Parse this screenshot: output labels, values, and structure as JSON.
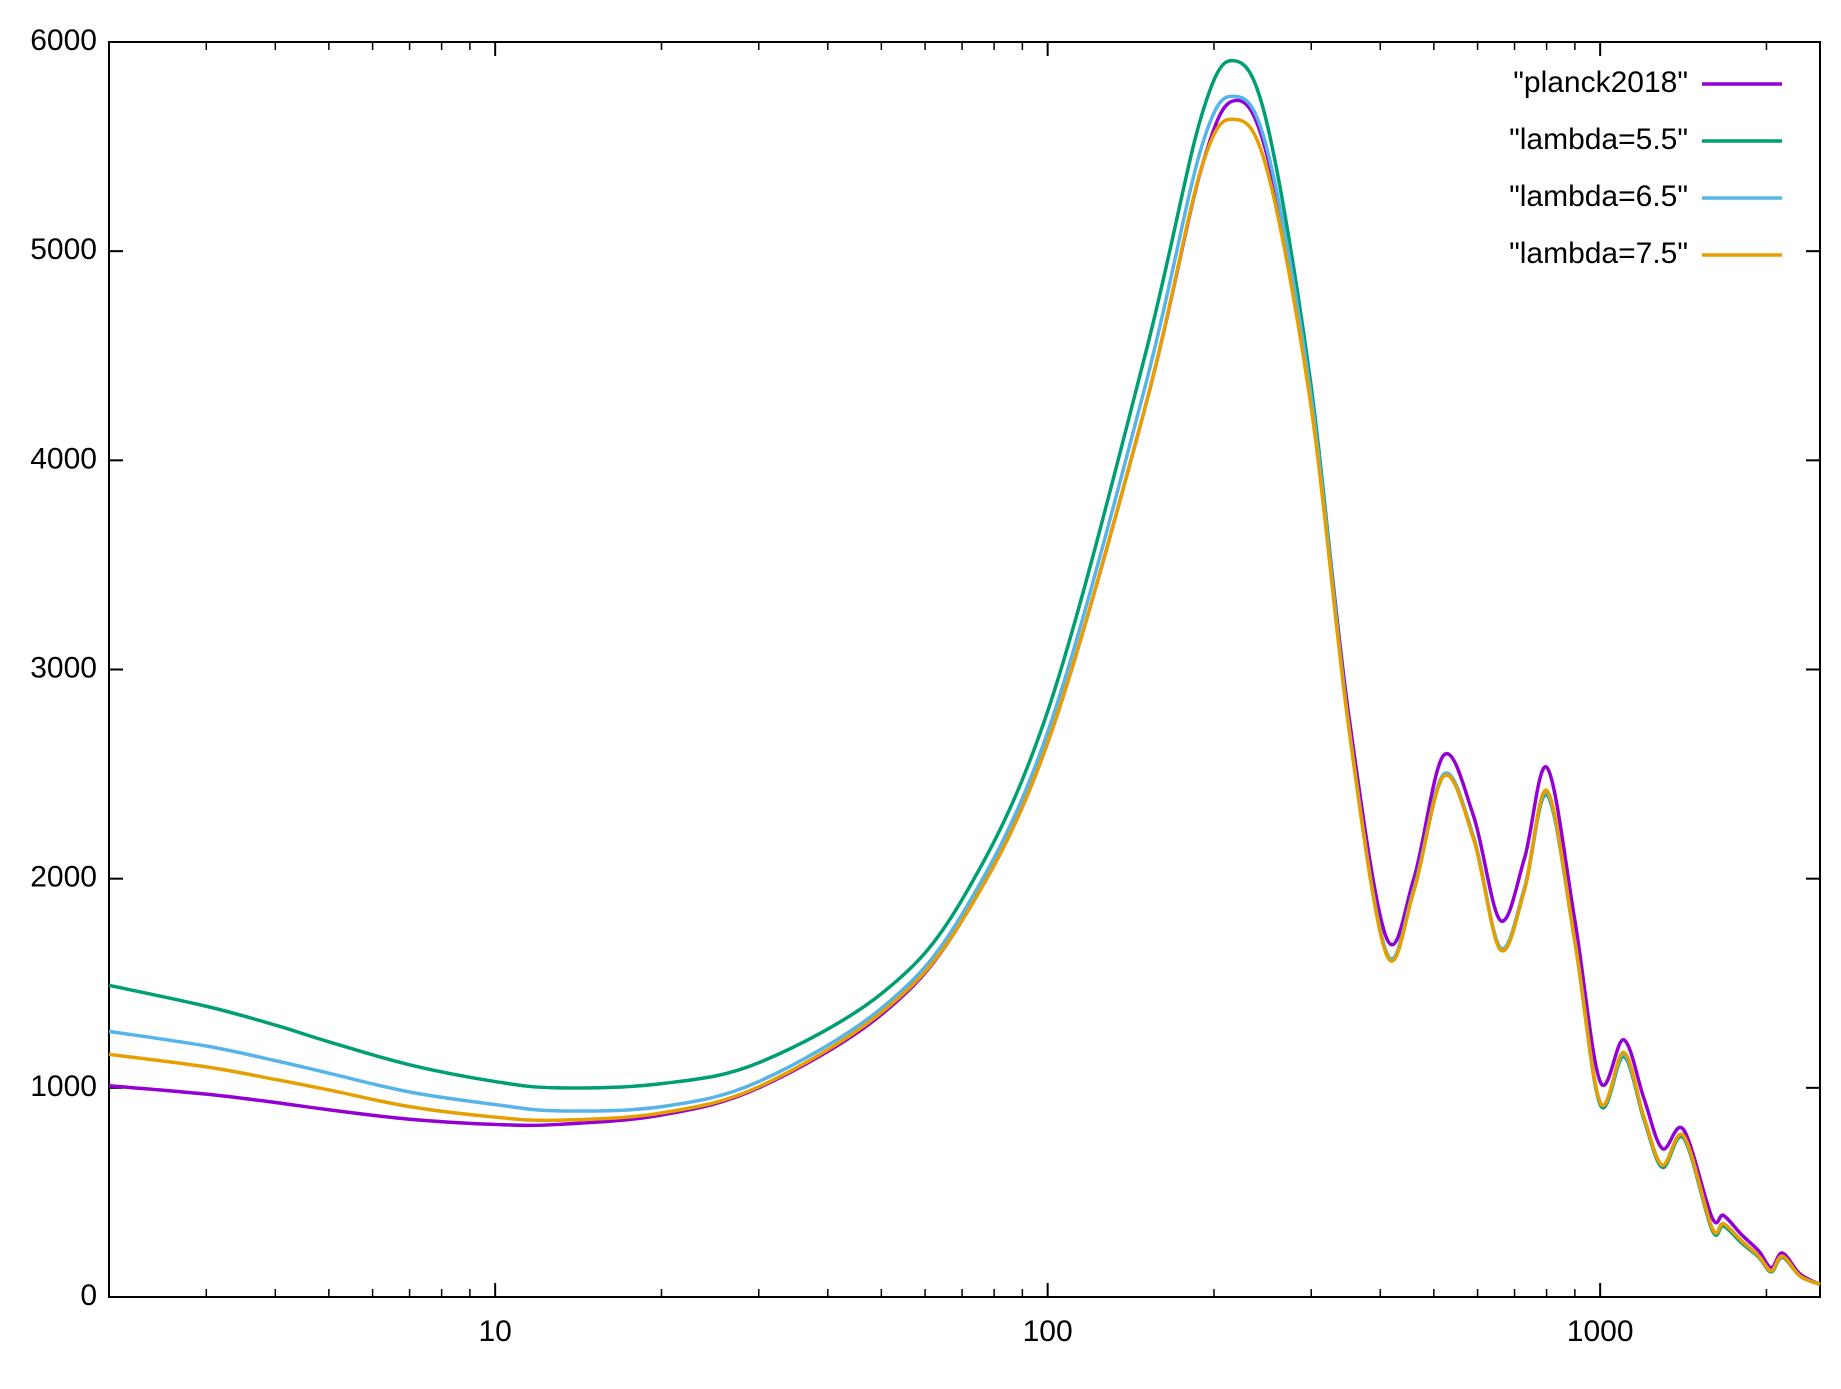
{
  "chart_data": {
    "type": "line",
    "x": [
      2,
      3,
      4,
      5,
      7,
      10,
      13,
      20,
      30,
      50,
      70,
      100,
      150,
      190,
      218,
      250,
      300,
      350,
      410,
      460,
      521,
      590,
      660,
      730,
      802,
      900,
      1000,
      1103,
      1200,
      1296,
      1416,
      1594,
      1672,
      1800,
      1937,
      2040,
      2137,
      2300,
      2500
    ],
    "series": [
      {
        "name": "\"planck2018\"",
        "color": "#9400d3",
        "values": [
          1010,
          970,
          930,
          895,
          850,
          825,
          825,
          870,
          1000,
          1350,
          1800,
          2650,
          4250,
          5400,
          5720,
          5450,
          4300,
          2800,
          1720,
          2000,
          2590,
          2300,
          1800,
          2100,
          2530,
          1800,
          1030,
          1230,
          950,
          710,
          800,
          380,
          390,
          300,
          220,
          140,
          210,
          110,
          60
        ]
      },
      {
        "name": "\"lambda=5.5\"",
        "color": "#009e73",
        "values": [
          1490,
          1390,
          1300,
          1220,
          1110,
          1030,
          1000,
          1020,
          1120,
          1450,
          1900,
          2800,
          4500,
          5650,
          5910,
          5600,
          4350,
          2750,
          1650,
          1950,
          2490,
          2200,
          1660,
          1950,
          2400,
          1700,
          920,
          1150,
          850,
          620,
          760,
          320,
          340,
          260,
          190,
          120,
          190,
          100,
          60
        ]
      },
      {
        "name": "\"lambda=6.5\"",
        "color": "#56b4e9",
        "values": [
          1270,
          1200,
          1130,
          1070,
          980,
          920,
          890,
          910,
          1030,
          1380,
          1830,
          2700,
          4350,
          5500,
          5740,
          5480,
          4300,
          2750,
          1650,
          1950,
          2500,
          2200,
          1670,
          1960,
          2410,
          1700,
          930,
          1160,
          860,
          630,
          770,
          330,
          350,
          270,
          195,
          125,
          195,
          100,
          60
        ]
      },
      {
        "name": "\"lambda=7.5\"",
        "color": "#e69f00",
        "values": [
          1160,
          1100,
          1040,
          990,
          910,
          860,
          845,
          880,
          1005,
          1360,
          1800,
          2650,
          4250,
          5400,
          5630,
          5380,
          4250,
          2740,
          1640,
          1940,
          2490,
          2190,
          1660,
          1950,
          2420,
          1700,
          930,
          1170,
          860,
          630,
          770,
          330,
          350,
          270,
          195,
          125,
          195,
          100,
          60
        ]
      }
    ],
    "xlim": [
      2,
      2500
    ],
    "xticks": [
      10,
      100,
      1000
    ],
    "xlog": true,
    "minor_ticks": true,
    "ylim": [
      0,
      6000
    ],
    "yticks": [
      0,
      1000,
      2000,
      3000,
      4000,
      5000,
      6000
    ],
    "grid": false,
    "legend": "top-right"
  }
}
